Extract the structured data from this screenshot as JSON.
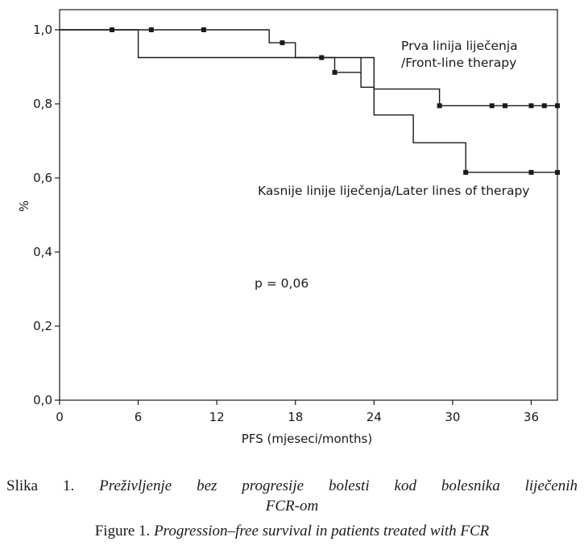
{
  "chart_data": {
    "type": "line",
    "subtype": "kaplan-meier step",
    "xlabel": "PFS (mjeseci/months)",
    "ylabel": "%",
    "xlim": [
      0,
      38
    ],
    "ylim": [
      0,
      1.0
    ],
    "x_ticks": [
      0,
      6,
      12,
      18,
      24,
      30,
      36
    ],
    "x_tick_labels": [
      "0",
      "6",
      "12",
      "18",
      "24",
      "30",
      "36"
    ],
    "y_ticks": [
      0,
      0.2,
      0.4,
      0.6,
      0.8,
      1.0
    ],
    "y_tick_labels": [
      "0,0",
      "0,2",
      "0,4",
      "0,6",
      "0,8",
      "1,0"
    ],
    "grid": false,
    "series": [
      {
        "name": "Prva linija liječenja /Front-line therapy",
        "steps": [
          [
            0,
            1.0
          ],
          [
            16,
            1.0
          ],
          [
            16,
            0.965
          ],
          [
            18,
            0.965
          ],
          [
            18,
            0.925
          ],
          [
            24,
            0.925
          ],
          [
            24,
            0.84
          ],
          [
            29,
            0.84
          ],
          [
            29,
            0.795
          ],
          [
            38,
            0.795
          ]
        ],
        "censored": [
          [
            4,
            1.0
          ],
          [
            7,
            1.0
          ],
          [
            11,
            1.0
          ],
          [
            17,
            0.965
          ],
          [
            20,
            0.925
          ],
          [
            29,
            0.795
          ],
          [
            33,
            0.795
          ],
          [
            34,
            0.795
          ],
          [
            36,
            0.795
          ],
          [
            37,
            0.795
          ],
          [
            38,
            0.795
          ]
        ]
      },
      {
        "name": "Kasnije linije liječenja/Later lines of therapy",
        "steps": [
          [
            0,
            1.0
          ],
          [
            6,
            1.0
          ],
          [
            6,
            0.925
          ],
          [
            21,
            0.925
          ],
          [
            21,
            0.885
          ],
          [
            23,
            0.885
          ],
          [
            23,
            0.925
          ],
          [
            23,
            0.845
          ],
          [
            24,
            0.845
          ],
          [
            24,
            0.77
          ],
          [
            27,
            0.77
          ],
          [
            27,
            0.695
          ],
          [
            31,
            0.695
          ],
          [
            31,
            0.615
          ],
          [
            38,
            0.615
          ]
        ],
        "censored": [
          [
            21,
            0.885
          ],
          [
            31,
            0.615
          ],
          [
            36,
            0.615
          ],
          [
            38,
            0.615
          ]
        ]
      }
    ],
    "annotations": {
      "series1_line1": "Prva linija liječenja",
      "series1_line2": "/Front-line therapy",
      "series2": "Kasnije linije liječenja/Later lines of therapy",
      "pvalue": "p = 0,06"
    }
  },
  "caption": {
    "sr_prefix": "Slika 1.",
    "sr_text_line1": "Preživljenje bez progresije bolesti kod bolesnika liječenih",
    "sr_text_line2": "FCR-om",
    "en_prefix": "Figure 1.",
    "en_text": "Progression–free survival in patients treated with FCR"
  }
}
